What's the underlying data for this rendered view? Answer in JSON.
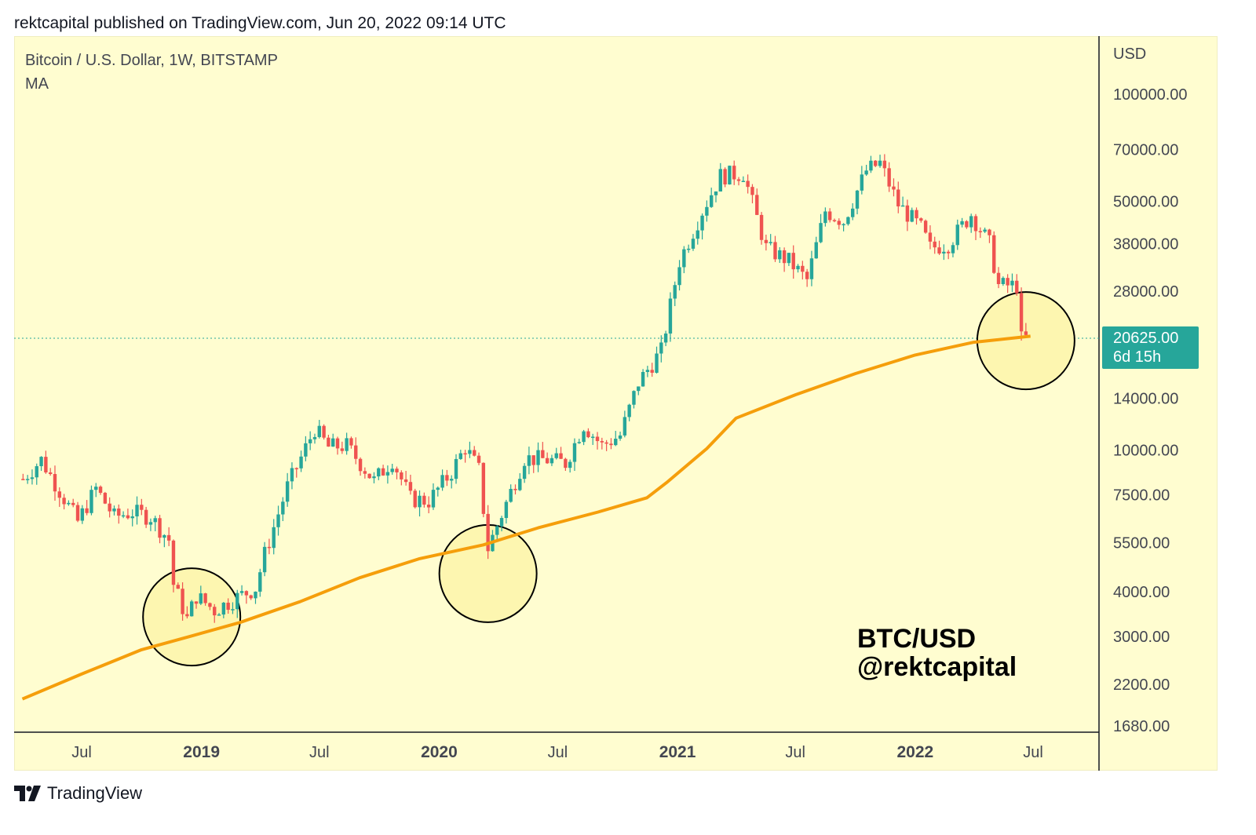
{
  "header": {
    "text": "rektcapital published on TradingView.com, Jun 20, 2022 09:14 UTC"
  },
  "chart_header": {
    "pair": "Bitcoin / U.S. Dollar, 1W, BITSTAMP",
    "indicator": "MA"
  },
  "price_axis": {
    "currency": "USD"
  },
  "last_price": {
    "value": "20625.00",
    "countdown": "6d 15h"
  },
  "watermark": {
    "line1": "BTC/USD",
    "line2": "@rektcapital"
  },
  "footer": {
    "brand": "TradingView"
  },
  "colors": {
    "up": "#26a69a",
    "down": "#ef5350",
    "ma": "#f59e0b",
    "background": "#fffdd0",
    "circle_fill": "#fdf6b0"
  },
  "chart_data": {
    "type": "candlestick",
    "scale": "log",
    "interval": "1W",
    "y_ticks": [
      "100000.00",
      "70000.00",
      "50000.00",
      "38000.00",
      "28000.00",
      "14000.00",
      "10000.00",
      "7500.00",
      "5500.00",
      "4000.00",
      "3000.00",
      "2200.00",
      "1680.00"
    ],
    "y_tick_values": [
      100000,
      70000,
      50000,
      38000,
      28000,
      14000,
      10000,
      7500,
      5500,
      4000,
      3000,
      2200,
      1680
    ],
    "x_ticks": [
      {
        "label": "Jul",
        "bold": false,
        "date": "2018-07-01"
      },
      {
        "label": "2019",
        "bold": true,
        "date": "2019-01-01"
      },
      {
        "label": "Jul",
        "bold": false,
        "date": "2019-07-01"
      },
      {
        "label": "2020",
        "bold": true,
        "date": "2020-01-01"
      },
      {
        "label": "Jul",
        "bold": false,
        "date": "2020-07-01"
      },
      {
        "label": "2021",
        "bold": true,
        "date": "2021-01-01"
      },
      {
        "label": "Jul",
        "bold": false,
        "date": "2021-07-01"
      },
      {
        "label": "2022",
        "bold": true,
        "date": "2022-01-01"
      },
      {
        "label": "Jul",
        "bold": false,
        "date": "2022-07-01"
      }
    ],
    "last_price": 20625,
    "series": [
      {
        "name": "MA",
        "points": [
          [
            "2018-04-01",
            2000
          ],
          [
            "2018-07-01",
            2350
          ],
          [
            "2018-10-01",
            2750
          ],
          [
            "2018-12-15",
            3000
          ],
          [
            "2019-03-01",
            3280
          ],
          [
            "2019-06-01",
            3750
          ],
          [
            "2019-09-01",
            4380
          ],
          [
            "2019-12-01",
            4950
          ],
          [
            "2020-03-09",
            5420
          ],
          [
            "2020-06-01",
            6050
          ],
          [
            "2020-09-01",
            6700
          ],
          [
            "2020-11-15",
            7350
          ],
          [
            "2020-12-15",
            8100
          ],
          [
            "2021-02-15",
            10100
          ],
          [
            "2021-04-01",
            12300
          ],
          [
            "2021-07-01",
            14300
          ],
          [
            "2021-10-01",
            16400
          ],
          [
            "2022-01-01",
            18500
          ],
          [
            "2022-04-01",
            20100
          ],
          [
            "2022-06-27",
            20900
          ]
        ]
      }
    ],
    "candles_weekly_close": [
      [
        "2018-04-02",
        8300
      ],
      [
        "2018-04-30",
        9400
      ],
      [
        "2018-05-28",
        7700
      ],
      [
        "2018-06-25",
        6300
      ],
      [
        "2018-07-23",
        7800
      ],
      [
        "2018-08-20",
        6500
      ],
      [
        "2018-09-17",
        6700
      ],
      [
        "2018-10-15",
        6500
      ],
      [
        "2018-11-12",
        5600
      ],
      [
        "2018-11-19",
        4200
      ],
      [
        "2018-12-10",
        3350
      ],
      [
        "2018-12-24",
        3900
      ],
      [
        "2019-01-21",
        3550
      ],
      [
        "2019-02-18",
        3800
      ],
      [
        "2019-03-25",
        4100
      ],
      [
        "2019-04-08",
        5100
      ],
      [
        "2019-05-13",
        7900
      ],
      [
        "2019-06-24",
        11500
      ],
      [
        "2019-07-15",
        10200
      ],
      [
        "2019-08-12",
        10300
      ],
      [
        "2019-09-23",
        8200
      ],
      [
        "2019-10-21",
        9400
      ],
      [
        "2019-11-18",
        7300
      ],
      [
        "2019-12-16",
        7200
      ],
      [
        "2020-01-20",
        8700
      ],
      [
        "2020-02-10",
        10200
      ],
      [
        "2020-03-02",
        8800
      ],
      [
        "2020-03-16",
        5300
      ],
      [
        "2020-04-13",
        7100
      ],
      [
        "2020-05-11",
        9500
      ],
      [
        "2020-06-15",
        9400
      ],
      [
        "2020-07-13",
        9200
      ],
      [
        "2020-08-10",
        11800
      ],
      [
        "2020-09-07",
        10300
      ],
      [
        "2020-10-05",
        11000
      ],
      [
        "2020-11-02",
        15500
      ],
      [
        "2020-12-07",
        19000
      ],
      [
        "2021-01-04",
        34000
      ],
      [
        "2021-02-08",
        47000
      ],
      [
        "2021-03-08",
        59000
      ],
      [
        "2021-04-12",
        60000
      ],
      [
        "2021-05-17",
        37000
      ],
      [
        "2021-06-21",
        34000
      ],
      [
        "2021-07-19",
        30000
      ],
      [
        "2021-08-16",
        47000
      ],
      [
        "2021-09-13",
        44000
      ],
      [
        "2021-10-18",
        61000
      ],
      [
        "2021-11-08",
        64000
      ],
      [
        "2021-12-06",
        49000
      ],
      [
        "2022-01-10",
        42000
      ],
      [
        "2022-01-24",
        37000
      ],
      [
        "2022-02-21",
        38000
      ],
      [
        "2022-03-28",
        46000
      ],
      [
        "2022-04-25",
        38000
      ],
      [
        "2022-05-09",
        29000
      ],
      [
        "2022-06-06",
        29000
      ],
      [
        "2022-06-13",
        20500
      ],
      [
        "2022-06-20",
        20625
      ]
    ],
    "highlight_circles": [
      {
        "date": "2018-12-17",
        "price": 3400
      },
      {
        "date": "2020-03-16",
        "price": 4500
      },
      {
        "date": "2022-06-20",
        "price": 20300
      }
    ]
  }
}
